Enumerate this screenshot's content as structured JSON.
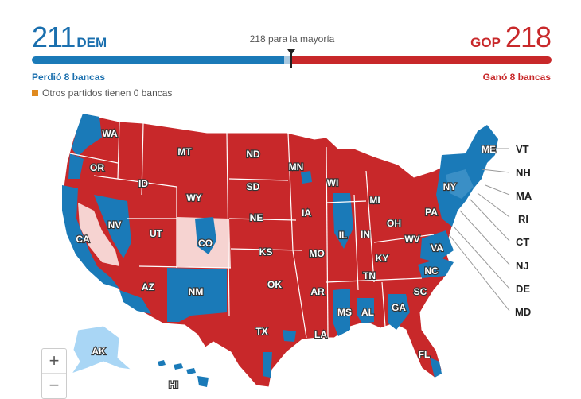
{
  "header": {
    "dem_seats": "211",
    "dem_label": "DEM",
    "gop_seats": "218",
    "gop_label": "GOP",
    "majority_text": "218 para la mayoría",
    "dem_change": "Perdió 8 bancas",
    "gop_change": "Ganó 8 bancas",
    "others_text": "Otros partidos tienen 0 bancas"
  },
  "seat_bar": {
    "total": 435,
    "dem": 211,
    "undecided": 6,
    "gop": 218,
    "majority": 218
  },
  "colors": {
    "dem": "#1a7ab8",
    "gop": "#c8282a",
    "gop_light": "#f6d3d1",
    "dem_light": "#a9d6f5",
    "other": "#e08a1e"
  },
  "map": {
    "state_labels": [
      "WA",
      "OR",
      "CA",
      "NV",
      "ID",
      "MT",
      "WY",
      "UT",
      "CO",
      "AZ",
      "NM",
      "ND",
      "SD",
      "NE",
      "KS",
      "OK",
      "TX",
      "MN",
      "IA",
      "MO",
      "AR",
      "LA",
      "WI",
      "IL",
      "MI",
      "IN",
      "OH",
      "KY",
      "TN",
      "MS",
      "AL",
      "GA",
      "FL",
      "SC",
      "NC",
      "VA",
      "WV",
      "PA",
      "NY",
      "ME",
      "AK",
      "HI"
    ],
    "northeast_labels": [
      "VT",
      "NH",
      "MA",
      "RI",
      "CT",
      "NJ",
      "DE",
      "MD"
    ]
  },
  "zoom": {
    "in": "+",
    "out": "−"
  }
}
